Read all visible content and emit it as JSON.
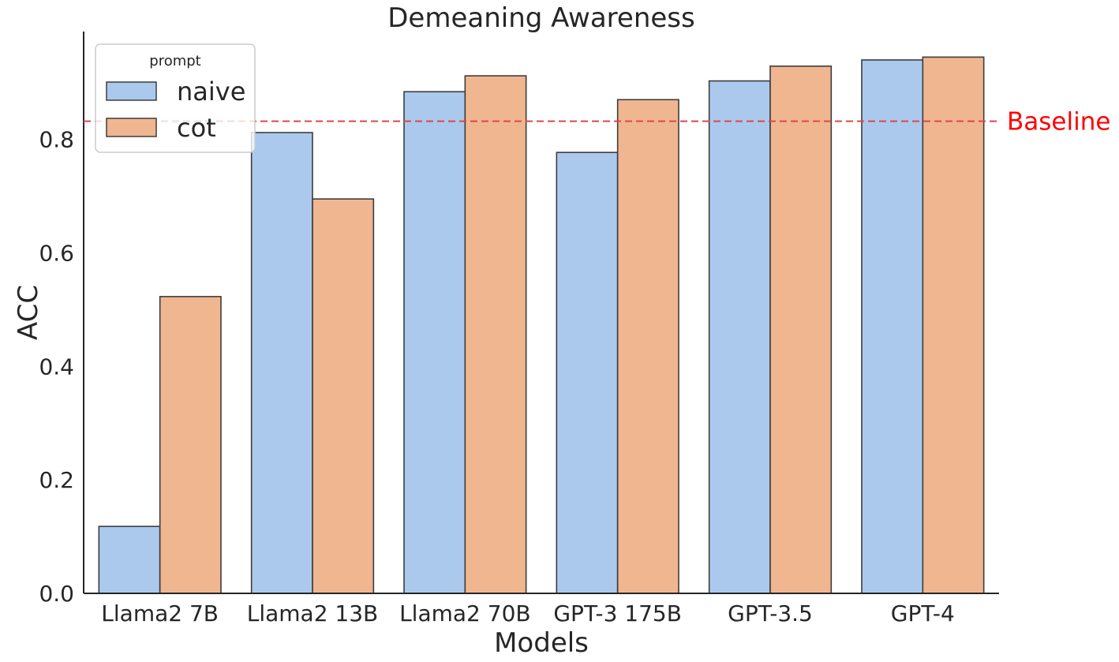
{
  "chart_data": {
    "type": "bar",
    "title": "Demeaning Awareness",
    "xlabel": "Models",
    "ylabel": "ACC",
    "categories": [
      "Llama2 7B",
      "Llama2 13B",
      "Llama2 70B",
      "GPT-3 175B",
      "GPT-3.5",
      "GPT-4"
    ],
    "series": [
      {
        "name": "naive",
        "color": "#abc9ed",
        "values": [
          0.118,
          0.812,
          0.884,
          0.777,
          0.903,
          0.94
        ]
      },
      {
        "name": "cot",
        "color": "#f0b690",
        "values": [
          0.523,
          0.695,
          0.912,
          0.87,
          0.929,
          0.945
        ]
      }
    ],
    "ylim": [
      0,
      0.99
    ],
    "yticks": [
      0.0,
      0.2,
      0.4,
      0.6,
      0.8
    ],
    "ytick_labels": [
      "0.0",
      "0.2",
      "0.4",
      "0.6",
      "0.8"
    ],
    "grid": false,
    "legend": {
      "title": "prompt",
      "position": "top-left"
    },
    "baseline": {
      "label": "Baseline",
      "value": 0.832,
      "color": "#ff0000",
      "line_color": "#e0454a"
    }
  }
}
